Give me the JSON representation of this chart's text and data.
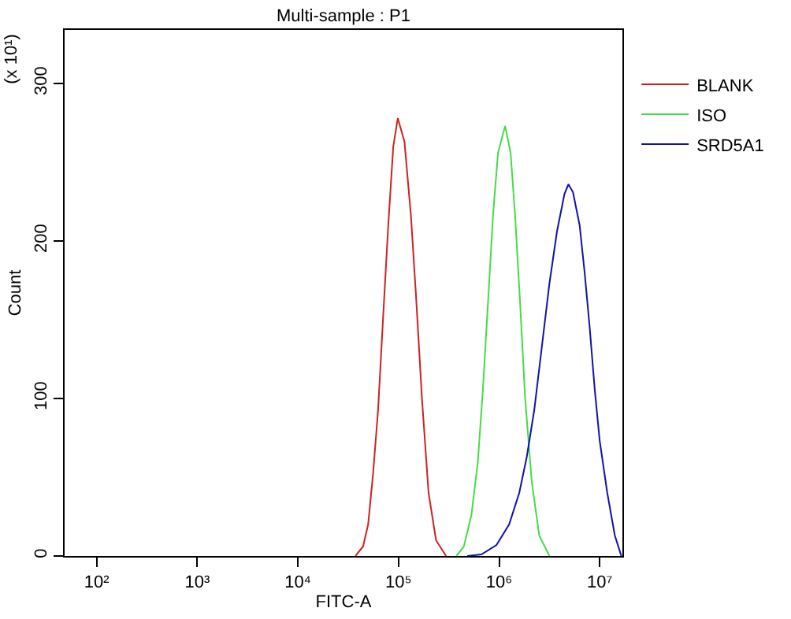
{
  "chart_data": {
    "type": "line",
    "title": "Multi-sample : P1",
    "xlabel": "FITC-A",
    "ylabel": "Count",
    "annotations": [
      "(x 10¹)"
    ],
    "log": "x",
    "grid": false,
    "legend": "top right",
    "marker": "none",
    "line_style": "solid",
    "xlim": [
      48,
      16800000
    ],
    "xticks": [
      {
        "value": 100,
        "label": "10²"
      },
      {
        "value": 1000,
        "label": "10³"
      },
      {
        "value": 10000,
        "label": "10⁴"
      },
      {
        "value": 100000,
        "label": "10⁵"
      },
      {
        "value": 1000000,
        "label": "10⁶"
      },
      {
        "value": 10000000,
        "label": "10⁷"
      }
    ],
    "ylim": [
      0,
      334
    ],
    "yticks": [
      0,
      100,
      200,
      300
    ],
    "series": [
      {
        "name": "BLANK",
        "color": "#cc2222",
        "x": [
          37300,
          44400,
          49900,
          56000,
          62700,
          70500,
          79100,
          88700,
          98400,
          114600,
          132900,
          149000,
          171000,
          199000,
          236000,
          297000
        ],
        "values": [
          0,
          6,
          20,
          53,
          93,
          153,
          210,
          260,
          278,
          263,
          216,
          166,
          100,
          40,
          10,
          0
        ]
      },
      {
        "name": "ISO",
        "color": "#44dd44",
        "x": [
          375000,
          446000,
          530000,
          615000,
          690000,
          774000,
          869000,
          975000,
          1146000,
          1300000,
          1442000,
          1618000,
          1815000,
          2110000,
          2505000,
          3162000
        ],
        "values": [
          0,
          6,
          26,
          60,
          106,
          160,
          216,
          256,
          273,
          256,
          216,
          160,
          100,
          47,
          13,
          0
        ]
      },
      {
        "name": "SRD5A1",
        "color": "#1111aa",
        "x": [
          482000,
          667000,
          942000,
          1256000,
          1585000,
          1884000,
          2239000,
          2661000,
          3162000,
          3758000,
          4467000,
          4887000,
          5420000,
          6310000,
          7079000,
          7925000,
          8913000,
          10000000,
          11890000,
          14130000,
          16400000
        ],
        "values": [
          0,
          1,
          7,
          20,
          40,
          63,
          93,
          133,
          173,
          206,
          230,
          236,
          231,
          210,
          180,
          146,
          106,
          73,
          40,
          13,
          0
        ]
      }
    ]
  }
}
